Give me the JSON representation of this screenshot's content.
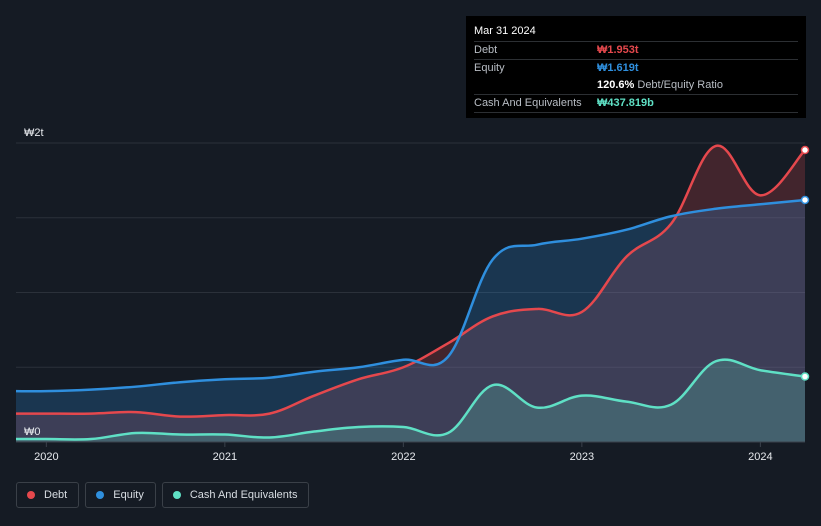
{
  "tooltip": {
    "date": "Mar 31 2024",
    "rows": [
      {
        "label": "Debt",
        "value": "₩1.953t",
        "color": "#e5484d"
      },
      {
        "label": "Equity",
        "value": "₩1.619t",
        "color": "#2f8fde"
      },
      {
        "label": "",
        "value": "120.6%",
        "suffix": "Debt/Equity Ratio",
        "color": "#ffffff"
      },
      {
        "label": "Cash And Equivalents",
        "value": "₩437.819b",
        "color": "#5fe0c5"
      }
    ]
  },
  "legend": [
    {
      "label": "Debt",
      "color": "#e5484d"
    },
    {
      "label": "Equity",
      "color": "#2f8fde"
    },
    {
      "label": "Cash And Equivalents",
      "color": "#5fe0c5"
    }
  ],
  "chart_data": {
    "type": "area",
    "title": "",
    "xlabel": "",
    "ylabel": "",
    "y_tick_labels": [
      "₩0",
      "₩2t"
    ],
    "x_tick_labels": [
      "2020",
      "2021",
      "2022",
      "2023",
      "2024"
    ],
    "x_ticks": [
      2020,
      2021,
      2022,
      2023,
      2024
    ],
    "xlim": [
      2019.83,
      2024.25
    ],
    "ylim": [
      0,
      2.0
    ],
    "unit": "trillion KRW",
    "x": [
      2019.83,
      2020.0,
      2020.25,
      2020.5,
      2020.75,
      2021.0,
      2021.25,
      2021.5,
      2021.75,
      2022.0,
      2022.25,
      2022.5,
      2022.75,
      2023.0,
      2023.25,
      2023.5,
      2023.75,
      2024.0,
      2024.25
    ],
    "series": [
      {
        "name": "Debt",
        "color": "#e5484d",
        "values": [
          0.19,
          0.19,
          0.19,
          0.2,
          0.17,
          0.18,
          0.19,
          0.31,
          0.42,
          0.5,
          0.66,
          0.84,
          0.89,
          0.87,
          1.24,
          1.46,
          1.98,
          1.65,
          1.953
        ]
      },
      {
        "name": "Equity",
        "color": "#2f8fde",
        "values": [
          0.34,
          0.34,
          0.35,
          0.37,
          0.4,
          0.42,
          0.43,
          0.47,
          0.5,
          0.55,
          0.57,
          1.22,
          1.32,
          1.36,
          1.42,
          1.51,
          1.56,
          1.59,
          1.619
        ]
      },
      {
        "name": "Cash And Equivalents",
        "color": "#5fe0c5",
        "values": [
          0.02,
          0.02,
          0.02,
          0.06,
          0.05,
          0.05,
          0.03,
          0.07,
          0.1,
          0.1,
          0.06,
          0.38,
          0.23,
          0.31,
          0.27,
          0.25,
          0.54,
          0.48,
          0.438
        ]
      }
    ]
  }
}
